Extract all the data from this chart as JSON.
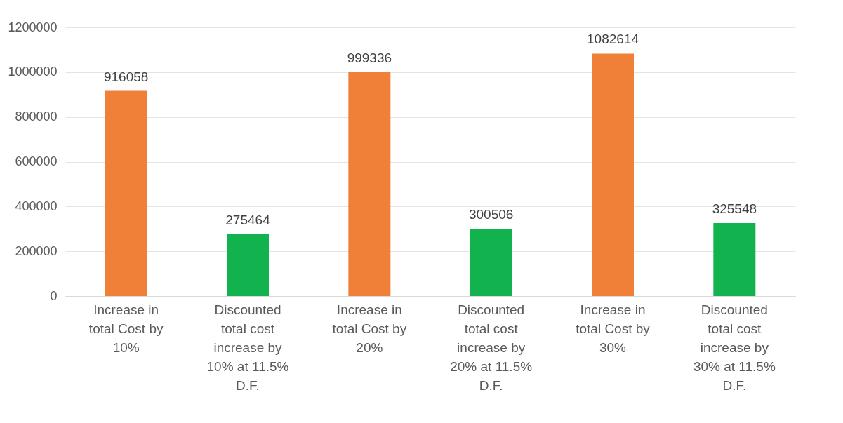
{
  "chart_data": {
    "type": "bar",
    "categories": [
      "Increase in total Cost by 10%",
      "Discounted total cost increase by 10% at 11.5% D.F.",
      "Increase in total Cost by 20%",
      "Discounted total cost increase by 20% at 11.5% D.F.",
      "Increase in total Cost by 30%",
      "Discounted total cost increase by 30% at 11.5% D.F."
    ],
    "values": [
      916058,
      275464,
      999336,
      300506,
      1082614,
      325548
    ],
    "colors": [
      "#f07f38",
      "#12b24f",
      "#f07f38",
      "#12b24f",
      "#f07f38",
      "#12b24f"
    ],
    "ylim": [
      0,
      1200000
    ],
    "yticks": [
      0,
      200000,
      400000,
      600000,
      800000,
      1000000,
      1200000
    ],
    "grid": "y",
    "data_labels": true
  }
}
